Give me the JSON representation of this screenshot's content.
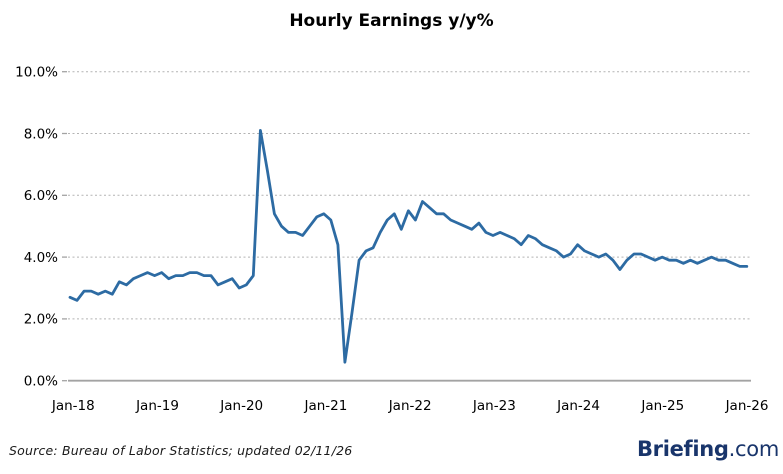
{
  "chart_data": {
    "type": "line",
    "title": "Hourly Earnings y/y%",
    "xlabel": "",
    "ylabel": "",
    "ylim": [
      0,
      10
    ],
    "grid": "horizontal-dotted, solid baseline at 0%",
    "legend": "none",
    "x_tick_labels": [
      "Jan-18",
      "Jan-19",
      "Jan-20",
      "Jan-21",
      "Jan-22",
      "Jan-23",
      "Jan-24",
      "Jan-25",
      "Jan-26"
    ],
    "y_tick_labels": [
      "10.0%",
      "8.0%",
      "6.0%",
      "4.0%",
      "2.0%",
      "0.0%"
    ],
    "y_tick_values": [
      10,
      8,
      6,
      4,
      2,
      0
    ],
    "x_frequency": "monthly",
    "x_range": "Jan-18 to Jan-26",
    "series": [
      {
        "name": "Hourly Earnings y/y%",
        "values": [
          2.7,
          2.6,
          2.9,
          2.9,
          2.8,
          2.9,
          2.8,
          3.2,
          3.1,
          3.3,
          3.4,
          3.5,
          3.4,
          3.5,
          3.3,
          3.4,
          3.4,
          3.5,
          3.5,
          3.4,
          3.4,
          3.1,
          3.2,
          3.3,
          3.0,
          3.1,
          3.4,
          8.1,
          6.8,
          5.4,
          5.0,
          4.8,
          4.8,
          4.7,
          5.0,
          5.3,
          5.4,
          5.2,
          4.4,
          0.6,
          2.2,
          3.9,
          4.2,
          4.3,
          4.8,
          5.2,
          5.4,
          4.9,
          5.5,
          5.2,
          5.8,
          5.6,
          5.4,
          5.4,
          5.2,
          5.1,
          5.0,
          4.9,
          5.1,
          4.8,
          4.7,
          4.8,
          4.7,
          4.6,
          4.4,
          4.7,
          4.6,
          4.4,
          4.3,
          4.2,
          4.0,
          4.1,
          4.4,
          4.2,
          4.1,
          4.0,
          4.1,
          3.9,
          3.6,
          3.9,
          4.1,
          4.1,
          4.0,
          3.9,
          4.0,
          3.9,
          3.9,
          3.8,
          3.9,
          3.8,
          3.9,
          4.0,
          3.9,
          3.9,
          3.8,
          3.7,
          3.7
        ]
      }
    ]
  },
  "colors": {
    "line": "#2D6BA3",
    "grid_dotted": "#B3B3B3",
    "baseline": "#A3A3A3",
    "tick": "#A3A3A3",
    "text": "#000000",
    "footer_text": "#1A1A1A",
    "logo_navy": "#19356B"
  },
  "footer": {
    "source": "Source: Bureau of Labor Statistics; updated 02/11/26"
  },
  "logo": {
    "brand": "Briefing",
    "suffix": ".com"
  }
}
